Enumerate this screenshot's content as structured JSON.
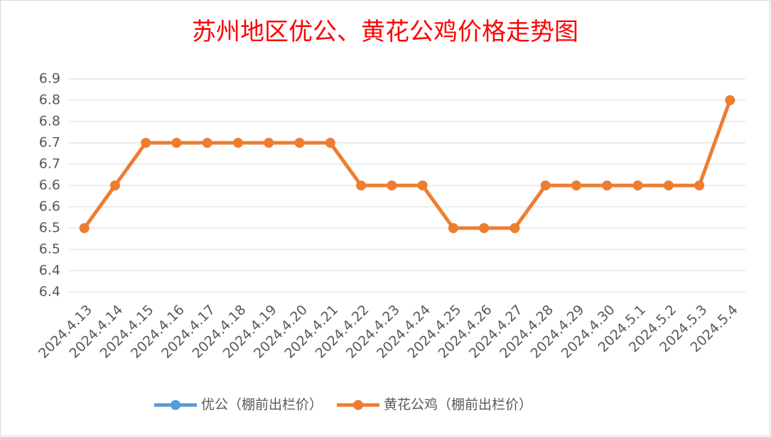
{
  "chart_data": {
    "type": "line",
    "title": "苏州地区优公、黄花公鸡价格走势图",
    "categories": [
      "2024.4.13",
      "2024.4.14",
      "2024.4.15",
      "2024.4.16",
      "2024.4.17",
      "2024.4.18",
      "2024.4.19",
      "2024.4.20",
      "2024.4.21",
      "2024.4.22",
      "2024.4.23",
      "2024.4.24",
      "2024.4.25",
      "2024.4.26",
      "2024.4.27",
      "2024.4.28",
      "2024.4.29",
      "2024.4.30",
      "2024.5.1",
      "2024.5.2",
      "2024.5.3",
      "2024.5.4"
    ],
    "series": [
      {
        "name": "优公（棚前出栏价）",
        "color": "#5b9bd5",
        "values": [
          null,
          null,
          null,
          null,
          null,
          null,
          null,
          null,
          null,
          null,
          null,
          null,
          null,
          null,
          null,
          null,
          null,
          null,
          null,
          null,
          null,
          null
        ]
      },
      {
        "name": "黄花公鸡（棚前出栏价）",
        "color": "#ed7d31",
        "values": [
          6.5,
          6.6,
          6.7,
          6.7,
          6.7,
          6.7,
          6.7,
          6.7,
          6.7,
          6.6,
          6.6,
          6.6,
          6.5,
          6.5,
          6.5,
          6.6,
          6.6,
          6.6,
          6.6,
          6.6,
          6.6,
          6.8
        ]
      }
    ],
    "ylim": [
      6.35,
      6.85
    ],
    "yticks": [
      {
        "value": 6.35,
        "label": "6.4"
      },
      6.4,
      {
        "value": 6.45,
        "label": "6.5"
      },
      6.5,
      {
        "value": 6.55,
        "label": "6.6"
      },
      6.6,
      {
        "value": 6.65,
        "label": "6.7"
      },
      6.7,
      {
        "value": 6.75,
        "label": "6.8"
      },
      6.8,
      {
        "value": 6.85,
        "label": "6.9"
      }
    ],
    "grid": true,
    "legend": "bottom"
  }
}
